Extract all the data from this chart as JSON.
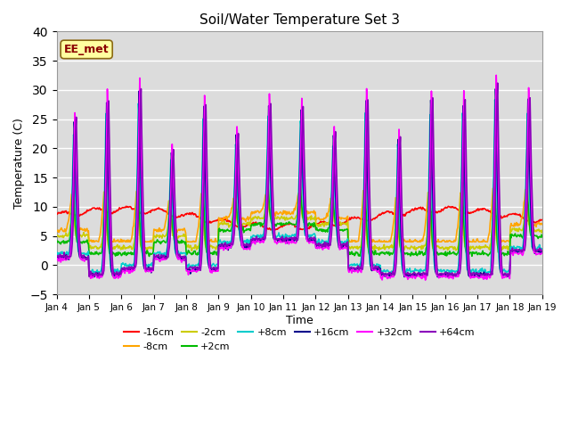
{
  "title": "Soil/Water Temperature Set 3",
  "xlabel": "Time",
  "ylabel": "Temperature (C)",
  "xlim": [
    0,
    15
  ],
  "ylim": [
    -5,
    40
  ],
  "yticks": [
    -5,
    0,
    5,
    10,
    15,
    20,
    25,
    30,
    35,
    40
  ],
  "xtick_labels": [
    "Jan 4",
    "Jan 5",
    "Jan 6",
    "Jan 7",
    "Jan 8",
    "Jan 9",
    "Jan 10",
    "Jan 11",
    "Jan 12",
    "Jan 13",
    "Jan 14",
    "Jan 15",
    "Jan 16",
    "Jan 17",
    "Jan 18",
    "Jan 19"
  ],
  "annotation_text": "EE_met",
  "annotation_color": "#8B0000",
  "annotation_bg": "#FFFFA0",
  "background_color": "#DCDCDC",
  "series": {
    "-16cm": {
      "color": "#FF0000",
      "lw": 1.2
    },
    "-8cm": {
      "color": "#FFA500",
      "lw": 1.2
    },
    "-2cm": {
      "color": "#CCCC00",
      "lw": 1.2
    },
    "+2cm": {
      "color": "#00BB00",
      "lw": 1.2
    },
    "+8cm": {
      "color": "#00CCCC",
      "lw": 1.2
    },
    "+16cm": {
      "color": "#00008B",
      "lw": 1.2
    },
    "+32cm": {
      "color": "#FF00FF",
      "lw": 1.2
    },
    "+64cm": {
      "color": "#8B00BB",
      "lw": 1.2
    }
  },
  "legend_order": [
    "-16cm",
    "-8cm",
    "-2cm",
    "+2cm",
    "+8cm",
    "+16cm",
    "+32cm",
    "+64cm"
  ]
}
